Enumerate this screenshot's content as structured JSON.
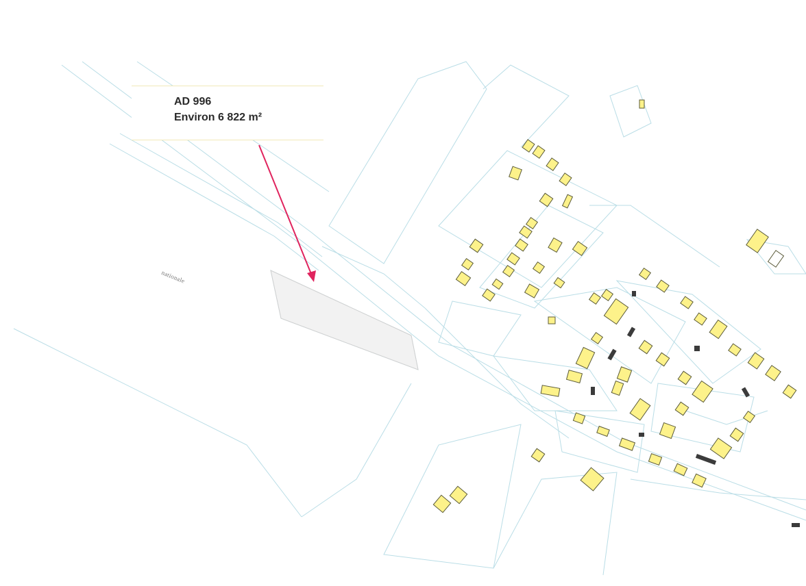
{
  "callout": {
    "parcel_id": "AD 996",
    "area_text": "Environ 6 822 m²"
  },
  "map": {
    "road_label": "nationale",
    "colors": {
      "parcel_lines": "#b9dde6",
      "buildings_fill": "#fdf28a",
      "buildings_stroke": "#5b5b3a",
      "annexes": "#3b3b3b",
      "arrow": "#e0245e"
    }
  }
}
